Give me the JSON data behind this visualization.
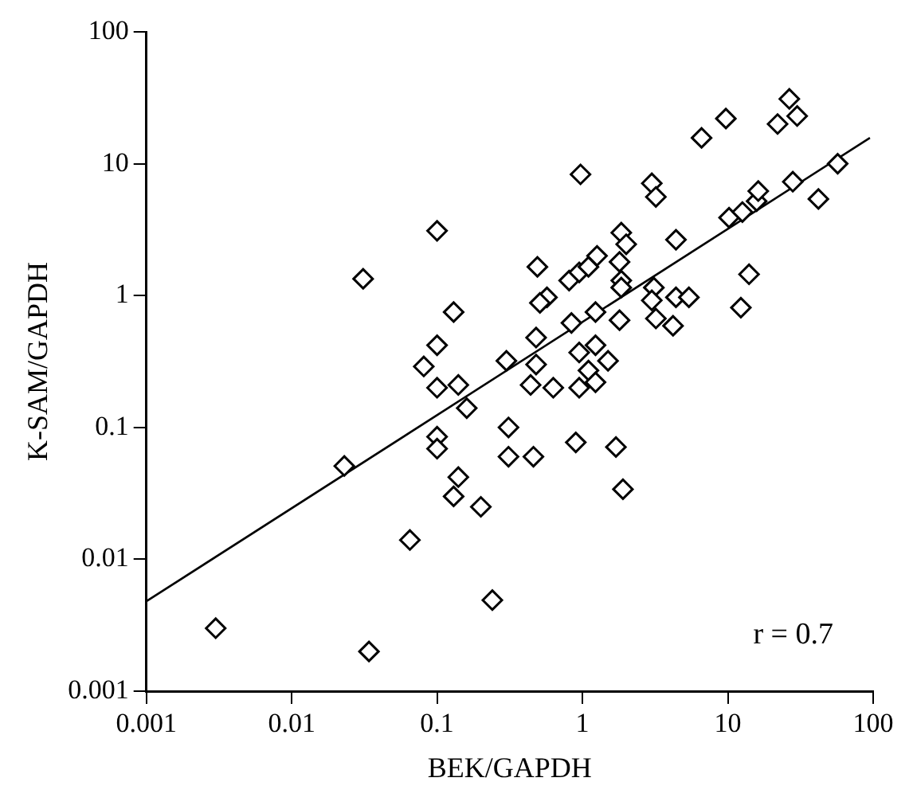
{
  "chart_data": {
    "type": "scatter",
    "xlabel": "BEK/GAPDH",
    "ylabel": "K-SAM/GAPDH",
    "log": "xy",
    "grid": false,
    "legend": false,
    "marker": "diamond",
    "xlim": [
      0.001,
      100
    ],
    "ylim": [
      0.001,
      100
    ],
    "xticks": [
      0.001,
      0.01,
      0.1,
      1,
      10,
      100
    ],
    "yticks": [
      0.001,
      0.01,
      0.1,
      1,
      10,
      100
    ],
    "annotations": [
      "r = 0.7"
    ],
    "series": [
      {
        "color": "#000000",
        "x": [
          0.003,
          0.034,
          0.023,
          0.065,
          0.031,
          0.1,
          0.13,
          0.1,
          0.081,
          0.1,
          0.1,
          0.1,
          0.13,
          0.14,
          0.14,
          0.16,
          0.3,
          0.48,
          0.48,
          0.44,
          0.63,
          0.84,
          1.23,
          1.8,
          0.95,
          1.23,
          1.5,
          1.1,
          0.95,
          1.23,
          0.49,
          0.57,
          0.51,
          0.81,
          0.95,
          1.1,
          1.26,
          0.97,
          1.85,
          2.0,
          1.8,
          1.85,
          1.85,
          3.0,
          3.2,
          4.4,
          3.1,
          3.0,
          3.2,
          4.2,
          4.4,
          5.4,
          6.6,
          9.7,
          14,
          12.3,
          10.2,
          12.6,
          15.8,
          16.2,
          28,
          57,
          42,
          22,
          26.5,
          30,
          0.31,
          0.31,
          0.46,
          0.9,
          1.7,
          1.9,
          0.2,
          0.24
        ],
        "values": [
          0.003,
          0.002,
          0.051,
          0.014,
          1.34,
          3.1,
          0.75,
          0.42,
          0.29,
          0.2,
          0.085,
          0.069,
          0.03,
          0.042,
          0.21,
          0.14,
          0.32,
          0.48,
          0.3,
          0.21,
          0.2,
          0.62,
          0.75,
          0.65,
          0.37,
          0.42,
          0.32,
          0.27,
          0.2,
          0.22,
          1.65,
          0.97,
          0.88,
          1.3,
          1.5,
          1.65,
          2.0,
          8.3,
          3.0,
          2.45,
          1.8,
          1.3,
          1.15,
          7.1,
          5.6,
          2.65,
          1.15,
          0.92,
          0.67,
          0.59,
          0.97,
          0.97,
          15.7,
          22,
          1.45,
          0.81,
          3.9,
          4.3,
          5.2,
          6.2,
          7.3,
          10,
          5.4,
          20,
          31,
          23,
          0.1,
          0.06,
          0.06,
          0.077,
          0.071,
          0.034,
          0.025,
          0.0049
        ]
      },
      {
        "type": "line",
        "marker": "none",
        "color": "#000000",
        "x": [
          0.001,
          95
        ],
        "values": [
          0.0048,
          15.7
        ]
      }
    ]
  }
}
